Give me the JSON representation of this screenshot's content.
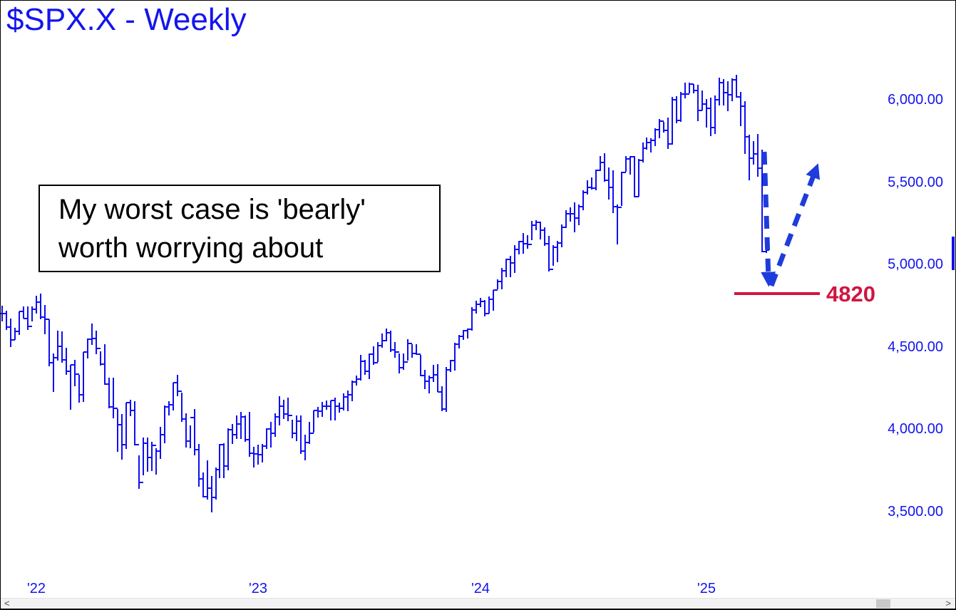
{
  "title": "$SPX.X - Weekly",
  "colors": {
    "text_blue": "#1414ee",
    "bar_blue": "#0f0ff0",
    "arrow_blue": "#1e3cdc",
    "level_red": "#d01540",
    "note_text": "#000000"
  },
  "annotation_box": {
    "line1": "My worst case is 'bearly'",
    "line2": "worth worrying about"
  },
  "scrollbar": {
    "left_arrow": "<",
    "right_arrow": ">"
  },
  "chart_data": {
    "type": "ohlc_bar",
    "symbol": "$SPX.X",
    "timeframe": "Weekly",
    "first_bar_week": "2021-11-05",
    "last_bar_week": "2025-04-11",
    "grid": false,
    "y_axis": {
      "side": "right",
      "range": [
        3350,
        6250
      ],
      "ticks": [
        {
          "label": "6,000.00",
          "value": 6000
        },
        {
          "label": "5,500.00",
          "value": 5500
        },
        {
          "label": "5,000.00",
          "value": 5000
        },
        {
          "label": "4,500.00",
          "value": 4500
        },
        {
          "label": "4,000.00",
          "value": 4000
        },
        {
          "label": "3,500.00",
          "value": 3500
        }
      ]
    },
    "x_axis": {
      "ticks": [
        {
          "label": "'22",
          "week": 8
        },
        {
          "label": "'23",
          "week": 60
        },
        {
          "label": "'24",
          "week": 112
        },
        {
          "label": "'25",
          "week": 165
        }
      ]
    },
    "bars_format": [
      "high",
      "low",
      "close"
    ],
    "bars": [
      [
        4744,
        4650,
        4698
      ],
      [
        4717,
        4600,
        4615
      ],
      [
        4670,
        4495,
        4538
      ],
      [
        4610,
        4540,
        4591
      ],
      [
        4713,
        4570,
        4712
      ],
      [
        4743,
        4670,
        4668
      ],
      [
        4740,
        4600,
        4621
      ],
      [
        4741,
        4650,
        4726
      ],
      [
        4808,
        4700,
        4766
      ],
      [
        4818,
        4662,
        4677
      ],
      [
        4749,
        4573,
        4663
      ],
      [
        4663,
        4380,
        4398
      ],
      [
        4454,
        4222,
        4432
      ],
      [
        4595,
        4414,
        4501
      ],
      [
        4590,
        4401,
        4419
      ],
      [
        4489,
        4328,
        4349
      ],
      [
        4385,
        4115,
        4385
      ],
      [
        4417,
        4258,
        4329
      ],
      [
        4327,
        4158,
        4204
      ],
      [
        4465,
        4162,
        4463
      ],
      [
        4546,
        4424,
        4543
      ],
      [
        4637,
        4508,
        4546
      ],
      [
        4593,
        4450,
        4488
      ],
      [
        4471,
        4381,
        4393
      ],
      [
        4512,
        4267,
        4272
      ],
      [
        4308,
        4124,
        4131
      ],
      [
        4307,
        4062,
        4123
      ],
      [
        4117,
        3858,
        4024
      ],
      [
        4090,
        3810,
        3901
      ],
      [
        4158,
        3875,
        4158
      ],
      [
        4177,
        4074,
        4109
      ],
      [
        4168,
        3900,
        3901
      ],
      [
        3838,
        3636,
        3675
      ],
      [
        3945,
        3715,
        3912
      ],
      [
        3946,
        3738,
        3825
      ],
      [
        3918,
        3742,
        3899
      ],
      [
        3880,
        3721,
        3863
      ],
      [
        4012,
        3818,
        3962
      ],
      [
        4140,
        3910,
        4130
      ],
      [
        4167,
        4080,
        4145
      ],
      [
        4280,
        4112,
        4280
      ],
      [
        4325,
        4195,
        4228
      ],
      [
        4218,
        4043,
        4058
      ],
      [
        4094,
        3886,
        3924
      ],
      [
        4019,
        3879,
        4067
      ],
      [
        4119,
        3837,
        3873
      ],
      [
        3907,
        3647,
        3693
      ],
      [
        3736,
        3584,
        3586
      ],
      [
        3807,
        3571,
        3640
      ],
      [
        3714,
        3492,
        3583
      ],
      [
        3763,
        3568,
        3753
      ],
      [
        3905,
        3700,
        3901
      ],
      [
        3912,
        3699,
        3771
      ],
      [
        4001,
        3745,
        3993
      ],
      [
        4028,
        3906,
        3965
      ],
      [
        4080,
        3937,
        4026
      ],
      [
        4100,
        3938,
        4072
      ],
      [
        4080,
        3918,
        3934
      ],
      [
        4101,
        3828,
        3852
      ],
      [
        3889,
        3764,
        3845
      ],
      [
        3904,
        3780,
        3840
      ],
      [
        3906,
        3794,
        3895
      ],
      [
        4003,
        3877,
        3999
      ],
      [
        4039,
        3885,
        3973
      ],
      [
        4094,
        3949,
        4071
      ],
      [
        4195,
        4020,
        4136
      ],
      [
        4176,
        4060,
        4090
      ],
      [
        4186,
        4047,
        4079
      ],
      [
        4052,
        3943,
        3970
      ],
      [
        4078,
        3925,
        4046
      ],
      [
        4082,
        3846,
        3862
      ],
      [
        3964,
        3809,
        3917
      ],
      [
        4039,
        3909,
        3971
      ],
      [
        4110,
        3974,
        4109
      ],
      [
        4133,
        4069,
        4105
      ],
      [
        4163,
        4072,
        4138
      ],
      [
        4169,
        4113,
        4134
      ],
      [
        4170,
        4049,
        4169
      ],
      [
        4186,
        4048,
        4136
      ],
      [
        4159,
        4098,
        4124
      ],
      [
        4213,
        4109,
        4192
      ],
      [
        4232,
        4104,
        4205
      ],
      [
        4290,
        4166,
        4282
      ],
      [
        4322,
        4263,
        4299
      ],
      [
        4448,
        4293,
        4410
      ],
      [
        4418,
        4328,
        4348
      ],
      [
        4458,
        4302,
        4450
      ],
      [
        4498,
        4385,
        4399
      ],
      [
        4527,
        4404,
        4505
      ],
      [
        4578,
        4489,
        4536
      ],
      [
        4607,
        4528,
        4582
      ],
      [
        4595,
        4464,
        4478
      ],
      [
        4527,
        4430,
        4464
      ],
      [
        4458,
        4335,
        4370
      ],
      [
        4458,
        4356,
        4406
      ],
      [
        4542,
        4414,
        4516
      ],
      [
        4514,
        4430,
        4457
      ],
      [
        4511,
        4447,
        4450
      ],
      [
        4449,
        4316,
        4320
      ],
      [
        4357,
        4238,
        4288
      ],
      [
        4324,
        4216,
        4308
      ],
      [
        4385,
        4283,
        4328
      ],
      [
        4393,
        4223,
        4224
      ],
      [
        4259,
        4104,
        4117
      ],
      [
        4373,
        4103,
        4358
      ],
      [
        4418,
        4343,
        4415
      ],
      [
        4521,
        4353,
        4514
      ],
      [
        4568,
        4488,
        4559
      ],
      [
        4599,
        4537,
        4594
      ],
      [
        4609,
        4546,
        4604
      ],
      [
        4738,
        4593,
        4719
      ],
      [
        4778,
        4697,
        4754
      ],
      [
        4793,
        4736,
        4770
      ],
      [
        4782,
        4682,
        4697
      ],
      [
        4802,
        4699,
        4784
      ],
      [
        4842,
        4714,
        4840
      ],
      [
        4906,
        4844,
        4891
      ],
      [
        4975,
        4845,
        4959
      ],
      [
        5030,
        4920,
        5027
      ],
      [
        5048,
        4921,
        5006
      ],
      [
        5112,
        4946,
        5089
      ],
      [
        5140,
        5057,
        5137
      ],
      [
        5189,
        5062,
        5124
      ],
      [
        5175,
        5092,
        5117
      ],
      [
        5261,
        5145,
        5234
      ],
      [
        5264,
        5203,
        5254
      ],
      [
        5256,
        5146,
        5204
      ],
      [
        5222,
        5107,
        5123
      ],
      [
        5168,
        4954,
        4967
      ],
      [
        5114,
        4990,
        5100
      ],
      [
        5139,
        5011,
        5128
      ],
      [
        5239,
        5101,
        5223
      ],
      [
        5325,
        5217,
        5303
      ],
      [
        5341,
        5256,
        5305
      ],
      [
        5375,
        5191,
        5278
      ],
      [
        5362,
        5234,
        5347
      ],
      [
        5447,
        5327,
        5432
      ],
      [
        5505,
        5420,
        5465
      ],
      [
        5523,
        5451,
        5460
      ],
      [
        5570,
        5446,
        5567
      ],
      [
        5656,
        5563,
        5615
      ],
      [
        5670,
        5497,
        5505
      ],
      [
        5585,
        5390,
        5463
      ],
      [
        5566,
        5306,
        5347
      ],
      [
        5358,
        5119,
        5344
      ],
      [
        5560,
        5350,
        5554
      ],
      [
        5652,
        5560,
        5635
      ],
      [
        5652,
        5540,
        5648
      ],
      [
        5655,
        5402,
        5408
      ],
      [
        5637,
        5406,
        5626
      ],
      [
        5735,
        5615,
        5703
      ],
      [
        5767,
        5695,
        5738
      ],
      [
        5762,
        5674,
        5751
      ],
      [
        5822,
        5714,
        5815
      ],
      [
        5878,
        5762,
        5865
      ],
      [
        5863,
        5797,
        5808
      ],
      [
        5887,
        5697,
        5729
      ],
      [
        6012,
        5722,
        5996
      ],
      [
        6017,
        5853,
        5871
      ],
      [
        6044,
        5860,
        6032
      ],
      [
        6099,
        6003,
        6032
      ],
      [
        6100,
        6034,
        6090
      ],
      [
        6092,
        6035,
        6051
      ],
      [
        6086,
        5867,
        5931
      ],
      [
        6050,
        5932,
        5971
      ],
      [
        5999,
        5829,
        5942
      ],
      [
        6007,
        5773,
        5827
      ],
      [
        6023,
        5787,
        5997
      ],
      [
        6128,
        5962,
        6101
      ],
      [
        6121,
        5962,
        6041
      ],
      [
        6110,
        5925,
        6026
      ],
      [
        6127,
        5988,
        6115
      ],
      [
        6148,
        6008,
        6013
      ],
      [
        6043,
        5837,
        5955
      ],
      [
        5986,
        5666,
        5770
      ],
      [
        5783,
        5505,
        5639
      ],
      [
        5747,
        5603,
        5668
      ],
      [
        5787,
        5530,
        5581
      ],
      [
        5695,
        5069,
        5074
      ],
      [
        5135,
        5065,
        5085
      ]
    ],
    "annotations": {
      "note_text": "My worst case is 'bearly' worth worrying about",
      "support_line": {
        "price": 4820,
        "label": "4820"
      },
      "projection_arrows": {
        "style": "thick dashed",
        "down_arrow": "decline from ~5700 to the 4820 level",
        "up_arrow": "sharp rebound from 4820 back toward ~5550"
      },
      "latest_price_tick": {
        "high": 5165,
        "low": 4962
      }
    }
  }
}
